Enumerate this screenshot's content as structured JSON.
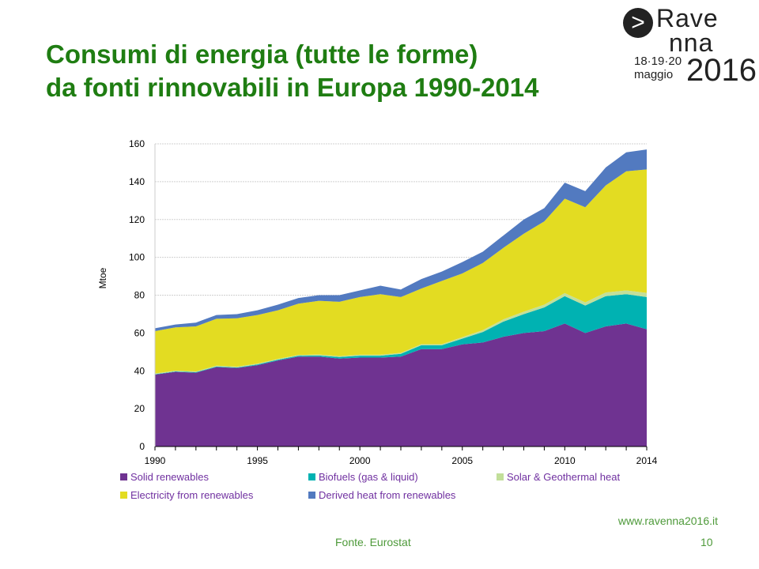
{
  "slide": {
    "title_line1": "Consumi di energia (tutte le forme)",
    "title_line2": "da fonti rinnovabili in Europa 1990-2014",
    "logo": {
      "mark": ">",
      "line1": "Rave",
      "line2": "nna",
      "year": "2016",
      "dates": "18·19·20",
      "month": "maggio"
    },
    "website": "www.ravenna2016.it",
    "source": "Fonte. Eurostat",
    "page_number": "10"
  },
  "chart_data": {
    "type": "area",
    "stacked": true,
    "ylabel": "Mtoe",
    "xlabel": "",
    "ylim": [
      0,
      160
    ],
    "yticks": [
      0,
      20,
      40,
      60,
      80,
      100,
      120,
      140,
      160
    ],
    "xticks": [
      1990,
      1995,
      2000,
      2005,
      2010,
      2014
    ],
    "grid": true,
    "legend": "bottom",
    "x": [
      1990,
      1991,
      1992,
      1993,
      1994,
      1995,
      1996,
      1997,
      1998,
      1999,
      2000,
      2001,
      2002,
      2003,
      2004,
      2005,
      2006,
      2007,
      2008,
      2009,
      2010,
      2011,
      2012,
      2013,
      2014
    ],
    "series": [
      {
        "name": "Solid renewables",
        "color": "#6f3391",
        "values": [
          38,
          39.5,
          39,
          42,
          41.5,
          43,
          45.5,
          47.5,
          47.5,
          46.5,
          47,
          47,
          47.5,
          51.5,
          51.5,
          54,
          55,
          58,
          60,
          61,
          65,
          60,
          63.5,
          65,
          62
        ]
      },
      {
        "name": "Biofuels (gas & liquid)",
        "color": "#00b2b2",
        "values": [
          0.2,
          0.2,
          0.3,
          0.3,
          0.3,
          0.4,
          0.4,
          0.5,
          0.6,
          0.8,
          1,
          1,
          1.5,
          2,
          2,
          3,
          5.5,
          8,
          10,
          12.5,
          14.5,
          14.5,
          16,
          15.5,
          17
        ]
      },
      {
        "name": "Solar & Geothermal heat",
        "color": "#c2df9a",
        "values": [
          0.4,
          0.4,
          0.4,
          0.4,
          0.4,
          0.4,
          0.4,
          0.4,
          0.5,
          0.5,
          0.5,
          0.5,
          0.5,
          0.6,
          0.6,
          0.8,
          1,
          1.2,
          1.3,
          1.5,
          1.6,
          1.7,
          1.9,
          2,
          2.2
        ]
      },
      {
        "name": "Electricity from renewables",
        "color": "#e3dc22",
        "values": [
          22.4,
          22.9,
          23.8,
          24.8,
          25.6,
          25.7,
          25.7,
          27.1,
          28.4,
          28.7,
          30.5,
          32,
          29.5,
          29.4,
          33.4,
          33.7,
          35.5,
          37.8,
          41.2,
          44,
          49.9,
          50.3,
          56.6,
          63,
          65.3
        ]
      },
      {
        "name": "Derived heat from renewables",
        "color": "#527ac0",
        "values": [
          1.5,
          1.5,
          2,
          2,
          2.2,
          2.5,
          3,
          3,
          3,
          3.5,
          3.5,
          4.5,
          4,
          5,
          5,
          6,
          6,
          6.5,
          7.5,
          7,
          8.5,
          8.5,
          9.5,
          10,
          10.5
        ]
      }
    ]
  }
}
